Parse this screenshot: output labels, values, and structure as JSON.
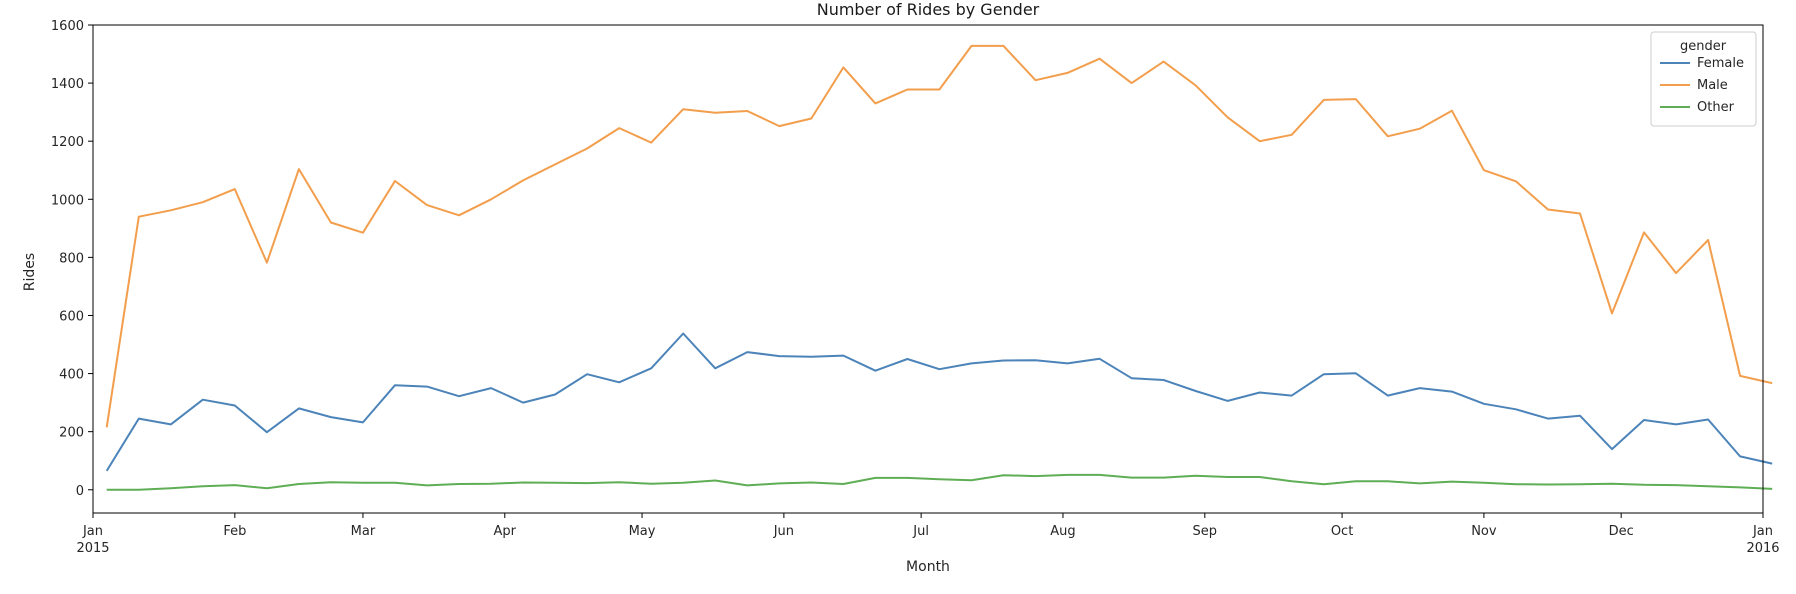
{
  "chart_data": {
    "type": "line",
    "title": "Number of Rides by Gender",
    "xlabel": "Month",
    "ylabel": "Rides",
    "xlim": [
      "2015-01-01",
      "2016-01-01"
    ],
    "ylim": [
      -80,
      1600
    ],
    "yticks": [
      0,
      200,
      400,
      600,
      800,
      1000,
      1200,
      1400,
      1600
    ],
    "xticks": [
      {
        "date": "2015-01-01",
        "label": "Jan",
        "sublabel": "2015"
      },
      {
        "date": "2015-02-01",
        "label": "Feb",
        "sublabel": ""
      },
      {
        "date": "2015-03-01",
        "label": "Mar",
        "sublabel": ""
      },
      {
        "date": "2015-04-01",
        "label": "Apr",
        "sublabel": ""
      },
      {
        "date": "2015-05-01",
        "label": "May",
        "sublabel": ""
      },
      {
        "date": "2015-06-01",
        "label": "Jun",
        "sublabel": ""
      },
      {
        "date": "2015-07-01",
        "label": "Jul",
        "sublabel": ""
      },
      {
        "date": "2015-08-01",
        "label": "Aug",
        "sublabel": ""
      },
      {
        "date": "2015-09-01",
        "label": "Sep",
        "sublabel": ""
      },
      {
        "date": "2015-10-01",
        "label": "Oct",
        "sublabel": ""
      },
      {
        "date": "2015-11-01",
        "label": "Nov",
        "sublabel": ""
      },
      {
        "date": "2015-12-01",
        "label": "Dec",
        "sublabel": ""
      },
      {
        "date": "2016-01-01",
        "label": "Jan",
        "sublabel": "2016"
      }
    ],
    "grid": false,
    "legend": {
      "title": "gender",
      "placement": "top-right"
    },
    "x": [
      "2015-01-04",
      "2015-01-11",
      "2015-01-18",
      "2015-01-25",
      "2015-02-01",
      "2015-02-08",
      "2015-02-15",
      "2015-02-22",
      "2015-03-01",
      "2015-03-08",
      "2015-03-15",
      "2015-03-22",
      "2015-03-29",
      "2015-04-05",
      "2015-04-12",
      "2015-04-19",
      "2015-04-26",
      "2015-05-03",
      "2015-05-10",
      "2015-05-17",
      "2015-05-24",
      "2015-05-31",
      "2015-06-07",
      "2015-06-14",
      "2015-06-21",
      "2015-06-28",
      "2015-07-05",
      "2015-07-12",
      "2015-07-19",
      "2015-07-26",
      "2015-08-02",
      "2015-08-09",
      "2015-08-16",
      "2015-08-23",
      "2015-08-30",
      "2015-09-06",
      "2015-09-13",
      "2015-09-20",
      "2015-09-27",
      "2015-10-04",
      "2015-10-11",
      "2015-10-18",
      "2015-10-25",
      "2015-11-01",
      "2015-11-08",
      "2015-11-15",
      "2015-11-22",
      "2015-11-29",
      "2015-12-06",
      "2015-12-13",
      "2015-12-20",
      "2015-12-27",
      "2016-01-03"
    ],
    "series": [
      {
        "name": "Female",
        "color": "#4c84b9",
        "values": [
          65,
          245,
          225,
          310,
          290,
          198,
          280,
          250,
          232,
          360,
          355,
          322,
          350,
          300,
          328,
          398,
          370,
          418,
          538,
          418,
          474,
          460,
          458,
          462,
          410,
          450,
          415,
          435,
          445,
          446,
          435,
          451,
          384,
          378,
          340,
          306,
          335,
          324,
          398,
          401,
          324,
          350,
          338,
          296,
          277,
          245,
          255,
          140,
          240,
          225,
          242,
          115,
          90
        ]
      },
      {
        "name": "Male",
        "color": "#f29e4c",
        "values": [
          215,
          940,
          962,
          990,
          1035,
          782,
          1104,
          920,
          885,
          1063,
          980,
          945,
          1000,
          1065,
          1120,
          1175,
          1245,
          1195,
          1310,
          1298,
          1304,
          1252,
          1278,
          1454,
          1330,
          1378,
          1378,
          1528,
          1528,
          1410,
          1435,
          1484,
          1400,
          1474,
          1392,
          1282,
          1200,
          1222,
          1342,
          1345,
          1217,
          1243,
          1305,
          1100,
          1062,
          965,
          951,
          607,
          886,
          746,
          860,
          392,
          367
        ]
      },
      {
        "name": "Other",
        "color": "#5fae55",
        "values": [
          0,
          0,
          5,
          12,
          16,
          5,
          20,
          26,
          24,
          24,
          15,
          20,
          21,
          25,
          24,
          23,
          26,
          21,
          24,
          32,
          15,
          22,
          25,
          20,
          41,
          41,
          36,
          33,
          50,
          47,
          51,
          51,
          42,
          42,
          48,
          44,
          44,
          29,
          19,
          29,
          29,
          22,
          28,
          24,
          19,
          18,
          19,
          21,
          17,
          16,
          12,
          8,
          3
        ]
      }
    ]
  }
}
